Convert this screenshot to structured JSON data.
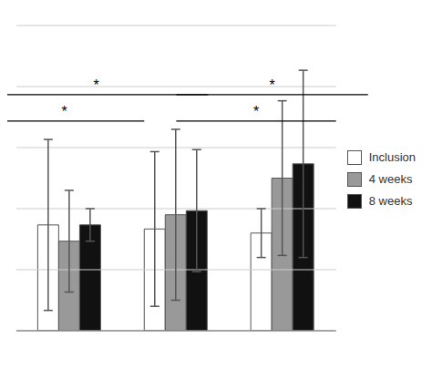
{
  "chart_data": {
    "type": "bar",
    "categories": [
      null,
      null,
      null
    ],
    "series": [
      {
        "name": "Inclusion",
        "color": "#ffffff",
        "values": [
          52,
          50,
          48
        ],
        "errors": [
          42,
          38,
          12
        ]
      },
      {
        "name": "4 weeks",
        "color": "#999999",
        "values": [
          44,
          57,
          75
        ],
        "errors": [
          25,
          42,
          38
        ]
      },
      {
        "name": "8 weeks",
        "color": "#111111",
        "values": [
          52,
          59,
          82
        ],
        "errors": [
          8,
          30,
          46
        ]
      }
    ],
    "ylim": [
      0,
      150
    ],
    "yticks": [
      0,
      30,
      60,
      90,
      120,
      150
    ],
    "grid": true,
    "tick_labels": false,
    "legend": "right",
    "annotations": [
      {
        "text": "*",
        "y": 103,
        "from": {
          "category": 0,
          "series": "Inclusion"
        },
        "to": {
          "category": 1,
          "series": "Inclusion"
        }
      },
      {
        "text": "*",
        "y": 116,
        "from": {
          "category": 0,
          "series": "Inclusion"
        },
        "to": {
          "category": 1,
          "series": "8 weeks"
        }
      },
      {
        "text": "*",
        "y": 103,
        "from": {
          "category": 1,
          "series": "4 weeks"
        },
        "to": {
          "category": 2,
          "series": "4 weeks"
        }
      },
      {
        "text": "*",
        "y": 116,
        "from": {
          "category": 1,
          "series": "4 weeks"
        },
        "to": {
          "category": 2,
          "series": "8 weeks"
        }
      }
    ]
  }
}
